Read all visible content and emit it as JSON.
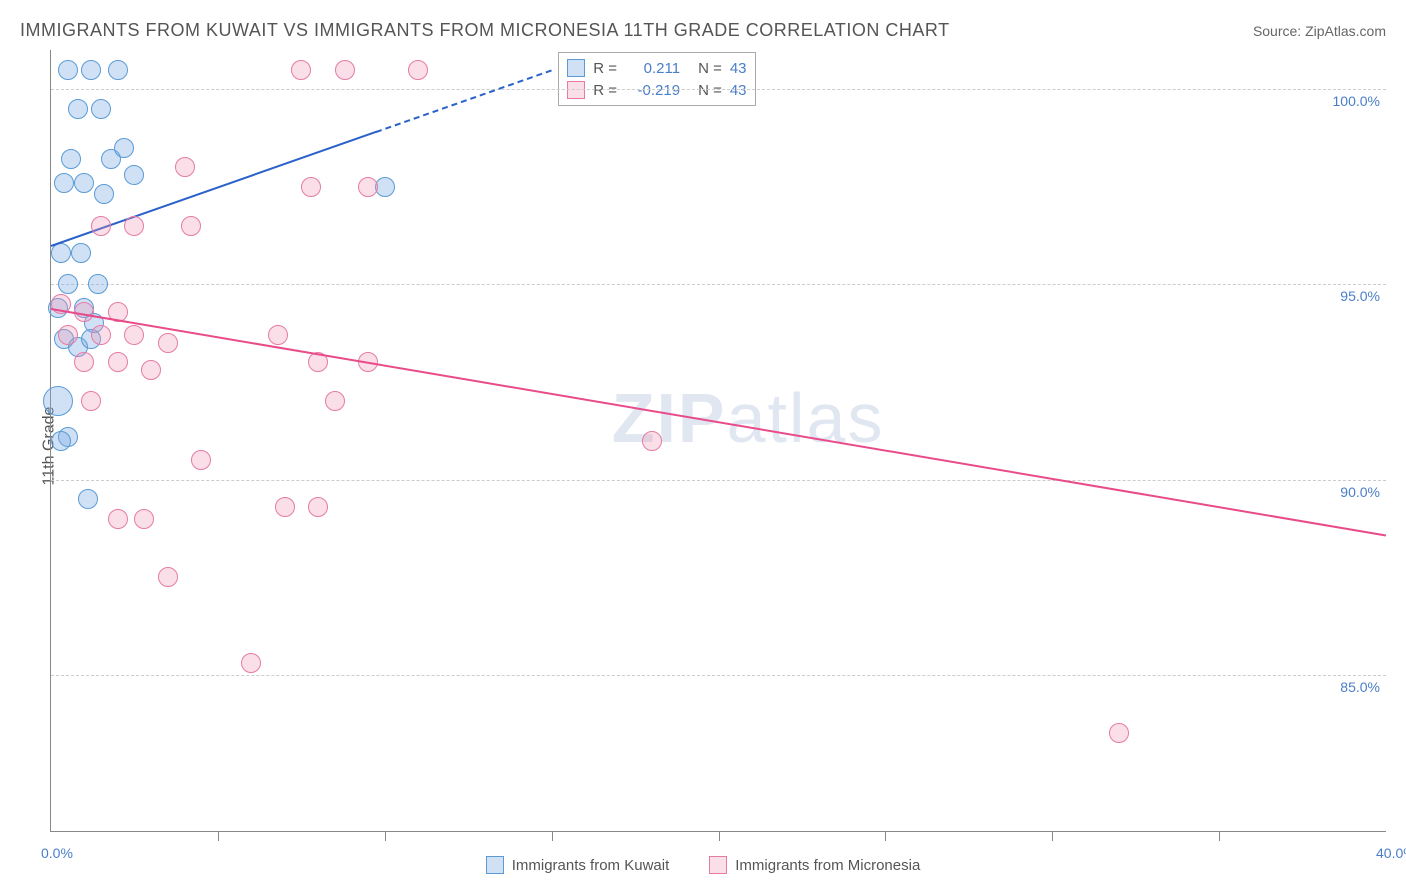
{
  "header": {
    "title": "IMMIGRANTS FROM KUWAIT VS IMMIGRANTS FROM MICRONESIA 11TH GRADE CORRELATION CHART",
    "source": "Source: ZipAtlas.com"
  },
  "chart": {
    "type": "scatter",
    "background_color": "#ffffff",
    "grid_color": "#cccccc",
    "axis_color": "#888888",
    "label_color": "#4a7ec9",
    "title_color": "#555555",
    "y_title": "11th Grade",
    "xlim": [
      0,
      40
    ],
    "ylim": [
      81,
      101
    ],
    "x_ticks": [
      0,
      40
    ],
    "x_tick_labels": [
      "0.0%",
      "40.0%"
    ],
    "x_minor_ticks": [
      5,
      10,
      15,
      20,
      25,
      30,
      35
    ],
    "y_ticks": [
      85,
      90,
      95,
      100
    ],
    "y_tick_labels": [
      "85.0%",
      "90.0%",
      "95.0%",
      "100.0%"
    ],
    "watermark": {
      "bold": "ZIP",
      "rest": "atlas",
      "color": "rgba(130,160,200,0.25)",
      "fontsize": 70
    },
    "series": [
      {
        "name": "Immigrants from Kuwait",
        "color_fill": "rgba(120,170,230,0.35)",
        "color_stroke": "#5a9bd5",
        "trend_color": "#2a62c9",
        "marker_radius": 9,
        "trend": {
          "x1": 0,
          "y1": 96.0,
          "x2": 15,
          "y2": 100.5,
          "solid_frac": 0.65
        },
        "points": [
          {
            "x": 0.5,
            "y": 100.5
          },
          {
            "x": 1.2,
            "y": 100.5
          },
          {
            "x": 2.0,
            "y": 100.5
          },
          {
            "x": 0.8,
            "y": 99.5
          },
          {
            "x": 1.5,
            "y": 99.5
          },
          {
            "x": 0.6,
            "y": 98.2
          },
          {
            "x": 1.8,
            "y": 98.2
          },
          {
            "x": 2.2,
            "y": 98.5
          },
          {
            "x": 0.4,
            "y": 97.6
          },
          {
            "x": 1.0,
            "y": 97.6
          },
          {
            "x": 1.6,
            "y": 97.3
          },
          {
            "x": 2.5,
            "y": 97.8
          },
          {
            "x": 10.0,
            "y": 97.5
          },
          {
            "x": 0.3,
            "y": 95.8
          },
          {
            "x": 0.9,
            "y": 95.8
          },
          {
            "x": 0.5,
            "y": 95.0
          },
          {
            "x": 1.4,
            "y": 95.0
          },
          {
            "x": 0.2,
            "y": 94.4
          },
          {
            "x": 1.0,
            "y": 94.4
          },
          {
            "x": 1.3,
            "y": 94.0
          },
          {
            "x": 0.4,
            "y": 93.6
          },
          {
            "x": 0.8,
            "y": 93.4
          },
          {
            "x": 1.2,
            "y": 93.6
          },
          {
            "x": 0.2,
            "y": 92.0,
            "r": 14
          },
          {
            "x": 0.5,
            "y": 91.1
          },
          {
            "x": 0.3,
            "y": 91.0
          },
          {
            "x": 1.1,
            "y": 89.5
          }
        ]
      },
      {
        "name": "Immigrants from Micronesia",
        "color_fill": "rgba(240,150,180,0.30)",
        "color_stroke": "#e67ba5",
        "trend_color": "#e94b8a",
        "marker_radius": 9,
        "trend": {
          "x1": 0,
          "y1": 94.4,
          "x2": 40,
          "y2": 88.6,
          "solid_frac": 1.0
        },
        "points": [
          {
            "x": 7.5,
            "y": 100.5
          },
          {
            "x": 8.8,
            "y": 100.5
          },
          {
            "x": 11.0,
            "y": 100.5
          },
          {
            "x": 4.0,
            "y": 98.0
          },
          {
            "x": 7.8,
            "y": 97.5
          },
          {
            "x": 9.5,
            "y": 97.5
          },
          {
            "x": 1.5,
            "y": 96.5
          },
          {
            "x": 2.5,
            "y": 96.5
          },
          {
            "x": 4.2,
            "y": 96.5
          },
          {
            "x": 0.3,
            "y": 94.5
          },
          {
            "x": 1.0,
            "y": 94.3
          },
          {
            "x": 2.0,
            "y": 94.3
          },
          {
            "x": 0.5,
            "y": 93.7
          },
          {
            "x": 1.5,
            "y": 93.7
          },
          {
            "x": 2.5,
            "y": 93.7
          },
          {
            "x": 3.5,
            "y": 93.5
          },
          {
            "x": 6.8,
            "y": 93.7
          },
          {
            "x": 1.0,
            "y": 93.0
          },
          {
            "x": 2.0,
            "y": 93.0
          },
          {
            "x": 3.0,
            "y": 92.8
          },
          {
            "x": 8.0,
            "y": 93.0
          },
          {
            "x": 9.5,
            "y": 93.0
          },
          {
            "x": 1.2,
            "y": 92.0
          },
          {
            "x": 8.5,
            "y": 92.0
          },
          {
            "x": 18.0,
            "y": 91.0
          },
          {
            "x": 4.5,
            "y": 90.5
          },
          {
            "x": 2.0,
            "y": 89.0
          },
          {
            "x": 2.8,
            "y": 89.0
          },
          {
            "x": 7.0,
            "y": 89.3
          },
          {
            "x": 8.0,
            "y": 89.3
          },
          {
            "x": 3.5,
            "y": 87.5
          },
          {
            "x": 6.0,
            "y": 85.3
          },
          {
            "x": 32.0,
            "y": 83.5
          }
        ]
      }
    ],
    "stats_box": {
      "rows": [
        {
          "swatch_fill": "rgba(120,170,230,0.35)",
          "swatch_stroke": "#5a9bd5",
          "r_label": "R =",
          "r_value": "0.211",
          "n_label": "N =",
          "n_value": "43"
        },
        {
          "swatch_fill": "rgba(240,150,180,0.30)",
          "swatch_stroke": "#e67ba5",
          "r_label": "R =",
          "r_value": "-0.219",
          "n_label": "N =",
          "n_value": "43"
        }
      ]
    },
    "bottom_legend": [
      {
        "swatch_fill": "rgba(120,170,230,0.35)",
        "swatch_stroke": "#5a9bd5",
        "label": "Immigrants from Kuwait"
      },
      {
        "swatch_fill": "rgba(240,150,180,0.30)",
        "swatch_stroke": "#e67ba5",
        "label": "Immigrants from Micronesia"
      }
    ]
  }
}
